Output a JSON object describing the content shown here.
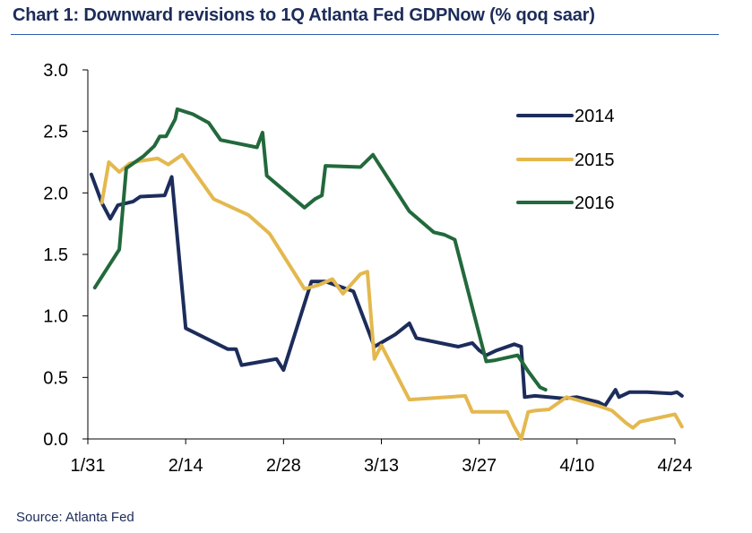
{
  "header": {
    "title": "Chart 1: Downward revisions to 1Q Atlanta Fed GDPNow (% qoq saar)"
  },
  "footer": {
    "source": "Source: Atlanta Fed"
  },
  "chart_data": {
    "type": "line",
    "title": "Chart 1: Downward revisions to 1Q Atlanta Fed GDPNow (% qoq saar)",
    "xlabel": "",
    "ylabel": "",
    "x_axis": {
      "unit": "day offset from 1/31",
      "range": [
        0,
        85
      ],
      "tick_values": [
        0,
        14,
        28,
        42,
        56,
        70,
        84
      ],
      "tick_labels": [
        "1/31",
        "2/14",
        "2/28",
        "3/13",
        "3/27",
        "4/10",
        "4/24"
      ]
    },
    "y_axis": {
      "range": [
        0,
        3.0
      ],
      "tick_values": [
        0,
        0.5,
        1.0,
        1.5,
        2.0,
        2.5,
        3.0
      ],
      "tick_labels": [
        "0.0",
        "0.5",
        "1.0",
        "1.5",
        "2.0",
        "2.5",
        "3.0"
      ]
    },
    "grid": false,
    "legend_position": "top-right",
    "series": [
      {
        "name": "2014",
        "color": "#1c2c5b",
        "points": [
          [
            0.5,
            2.15
          ],
          [
            2,
            1.92
          ],
          [
            3.2,
            1.79
          ],
          [
            4.3,
            1.9
          ],
          [
            6.5,
            1.93
          ],
          [
            7.5,
            1.97
          ],
          [
            11,
            1.98
          ],
          [
            12,
            2.13
          ],
          [
            14,
            0.9
          ],
          [
            20,
            0.73
          ],
          [
            21.2,
            0.73
          ],
          [
            22,
            0.6
          ],
          [
            24,
            0.62
          ],
          [
            26,
            0.64
          ],
          [
            27,
            0.65
          ],
          [
            28,
            0.56
          ],
          [
            32,
            1.28
          ],
          [
            34,
            1.28
          ],
          [
            38,
            1.2
          ],
          [
            41,
            0.75
          ],
          [
            44,
            0.85
          ],
          [
            46,
            0.94
          ],
          [
            47,
            0.82
          ],
          [
            53,
            0.75
          ],
          [
            55,
            0.78
          ],
          [
            56,
            0.72
          ],
          [
            57,
            0.68
          ],
          [
            58.5,
            0.72
          ],
          [
            61,
            0.77
          ],
          [
            62,
            0.75
          ],
          [
            62.5,
            0.34
          ],
          [
            64,
            0.35
          ],
          [
            68,
            0.33
          ],
          [
            70,
            0.34
          ],
          [
            73,
            0.3
          ],
          [
            74,
            0.27
          ],
          [
            75.5,
            0.4
          ],
          [
            76,
            0.34
          ],
          [
            77.5,
            0.38
          ],
          [
            80,
            0.38
          ],
          [
            83.5,
            0.37
          ],
          [
            84.3,
            0.38
          ],
          [
            85,
            0.35
          ]
        ]
      },
      {
        "name": "2015",
        "color": "#e4b84e",
        "points": [
          [
            2,
            1.92
          ],
          [
            3,
            2.25
          ],
          [
            4.5,
            2.17
          ],
          [
            6,
            2.24
          ],
          [
            7.5,
            2.26
          ],
          [
            10,
            2.28
          ],
          [
            11.5,
            2.23
          ],
          [
            13.5,
            2.31
          ],
          [
            18,
            1.95
          ],
          [
            23,
            1.82
          ],
          [
            26,
            1.67
          ],
          [
            31,
            1.22
          ],
          [
            33,
            1.25
          ],
          [
            35,
            1.3
          ],
          [
            36.5,
            1.18
          ],
          [
            39,
            1.34
          ],
          [
            40,
            1.36
          ],
          [
            41,
            0.65
          ],
          [
            42,
            0.76
          ],
          [
            46,
            0.32
          ],
          [
            54,
            0.35
          ],
          [
            55,
            0.22
          ],
          [
            59,
            0.22
          ],
          [
            60,
            0.22
          ],
          [
            61,
            0.1
          ],
          [
            62,
            0.0
          ],
          [
            63,
            0.22
          ],
          [
            64,
            0.23
          ],
          [
            66,
            0.24
          ],
          [
            68.5,
            0.34
          ],
          [
            73,
            0.27
          ],
          [
            75,
            0.23
          ],
          [
            76,
            0.18
          ],
          [
            77,
            0.13
          ],
          [
            78,
            0.09
          ],
          [
            79,
            0.14
          ],
          [
            84,
            0.2
          ],
          [
            85,
            0.1
          ]
        ]
      },
      {
        "name": "2016",
        "color": "#22693c",
        "points": [
          [
            1,
            1.23
          ],
          [
            4.5,
            1.54
          ],
          [
            5.5,
            2.2
          ],
          [
            8,
            2.3
          ],
          [
            9.5,
            2.38
          ],
          [
            10.3,
            2.46
          ],
          [
            11.2,
            2.46
          ],
          [
            12.5,
            2.6
          ],
          [
            12.8,
            2.68
          ],
          [
            15,
            2.64
          ],
          [
            17.3,
            2.57
          ],
          [
            19,
            2.43
          ],
          [
            24.2,
            2.37
          ],
          [
            25,
            2.49
          ],
          [
            25.6,
            2.14
          ],
          [
            31,
            1.88
          ],
          [
            32.5,
            1.95
          ],
          [
            33.5,
            1.98
          ],
          [
            34,
            2.22
          ],
          [
            39,
            2.21
          ],
          [
            40.8,
            2.31
          ],
          [
            46,
            1.85
          ],
          [
            49.5,
            1.68
          ],
          [
            51,
            1.66
          ],
          [
            52.5,
            1.62
          ],
          [
            57,
            0.63
          ],
          [
            58.3,
            0.64
          ],
          [
            61.5,
            0.68
          ],
          [
            63,
            0.55
          ],
          [
            64.7,
            0.42
          ],
          [
            65.5,
            0.4
          ]
        ]
      }
    ]
  }
}
